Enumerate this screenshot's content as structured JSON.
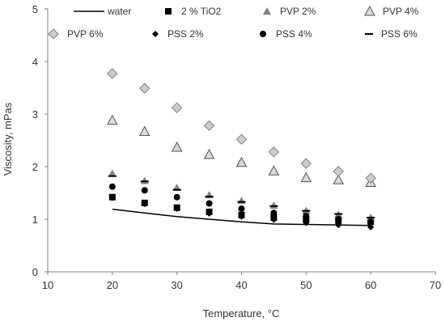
{
  "chart_data": {
    "type": "scatter",
    "xlabel": "Temperature, °C",
    "ylabel": "Viscosity, mPas",
    "xlim": [
      10,
      70
    ],
    "ylim": [
      0,
      5
    ],
    "xticks": [
      "10",
      "20",
      "30",
      "40",
      "50",
      "60",
      "70"
    ],
    "yticks": [
      "0",
      "1",
      "2",
      "3",
      "4",
      "5"
    ],
    "grid": false,
    "legend_position": "top",
    "x": [
      20,
      25,
      30,
      35,
      40,
      45,
      50,
      55,
      60
    ],
    "series": [
      {
        "name": "water",
        "marker": "line",
        "color": "#000000",
        "values": [
          1.19,
          1.12,
          1.05,
          1.0,
          0.95,
          0.91,
          0.9,
          0.89,
          0.88
        ]
      },
      {
        "name": "2 % TiO2",
        "marker": "square",
        "color": "#000000",
        "values": [
          1.42,
          1.31,
          1.22,
          1.14,
          1.08,
          1.03,
          1.0,
          0.97,
          0.95
        ]
      },
      {
        "name": "PVP 2%",
        "marker": "triangle",
        "color": "#808080",
        "values": [
          1.87,
          1.73,
          1.6,
          1.46,
          1.35,
          1.26,
          1.16,
          1.09,
          1.03
        ]
      },
      {
        "name": "PVP 4%",
        "marker": "triangle-open",
        "color": "#555555",
        "values": [
          2.88,
          2.67,
          2.37,
          2.23,
          2.08,
          1.92,
          1.79,
          1.75,
          1.7
        ]
      },
      {
        "name": "PVP 6%",
        "marker": "diamond-open",
        "color": "#808080",
        "values": [
          3.77,
          3.49,
          3.12,
          2.78,
          2.52,
          2.28,
          2.06,
          1.91,
          1.78
        ]
      },
      {
        "name": "PSS 2%",
        "marker": "diamond",
        "color": "#000000",
        "values": [
          1.41,
          1.29,
          1.2,
          1.11,
          1.05,
          0.99,
          0.93,
          0.89,
          0.85
        ]
      },
      {
        "name": "PSS 4%",
        "marker": "circle",
        "color": "#000000",
        "values": [
          1.62,
          1.55,
          1.42,
          1.3,
          1.2,
          1.12,
          1.06,
          1.0,
          0.95
        ]
      },
      {
        "name": "PSS 6%",
        "marker": "dash",
        "color": "#000000",
        "values": [
          1.82,
          1.72,
          1.56,
          1.43,
          1.33,
          1.25,
          1.16,
          1.1,
          1.03
        ]
      }
    ]
  }
}
